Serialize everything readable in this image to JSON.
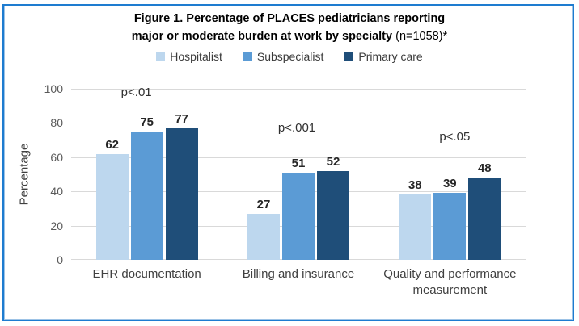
{
  "figure": {
    "title_line1": "Figure 1. Percentage of PLACES pediatricians reporting",
    "title_line2_bold": "major or moderate burden at work by specialty",
    "title_line2_normal": " (n=1058)*"
  },
  "chart_data": {
    "type": "bar",
    "title": "Figure 1. Percentage of PLACES pediatricians reporting major or moderate burden at work by specialty (n=1058)*",
    "xlabel": "",
    "ylabel": "Percentage",
    "ylim": [
      0,
      100
    ],
    "yticks": [
      0,
      20,
      40,
      60,
      80,
      100
    ],
    "grid": true,
    "legend_position": "top",
    "categories": [
      "EHR documentation",
      "Billing and insurance",
      "Quality and performance measurement"
    ],
    "series": [
      {
        "name": "Hospitalist",
        "color": "#bdd7ee",
        "values": [
          62,
          27,
          38
        ]
      },
      {
        "name": "Subspecialist",
        "color": "#5b9bd5",
        "values": [
          75,
          51,
          39
        ]
      },
      {
        "name": "Primary care",
        "color": "#1f4e79",
        "values": [
          77,
          52,
          48
        ]
      }
    ],
    "annotations": [
      {
        "text": "p<.01",
        "category_index": 0,
        "y": 94,
        "dx": -13
      },
      {
        "text": "p<.001",
        "category_index": 1,
        "y": 73,
        "dx": -2
      },
      {
        "text": "p<.05",
        "category_index": 2,
        "y": 68,
        "dx": 6
      }
    ]
  },
  "colors": {
    "border_outer": "#1e7cd0",
    "border_inner": "#9dc3e6",
    "gridline": "#d9d9d9",
    "tick_text": "#595959",
    "label_text": "#404040",
    "value_text": "#262626"
  }
}
